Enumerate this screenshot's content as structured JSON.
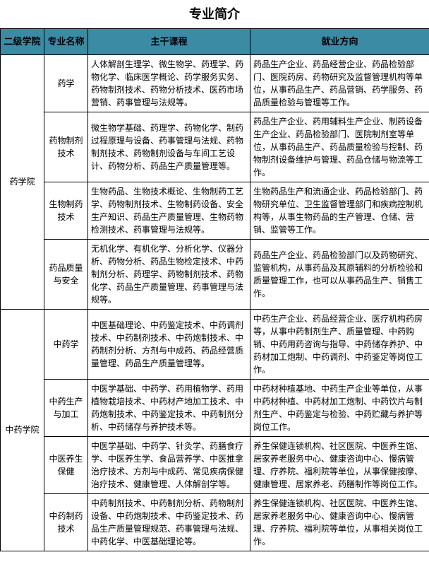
{
  "page_title": "专业简介",
  "header": {
    "college": "二级学院",
    "major": "专业名称",
    "courses": "主干课程",
    "career": "就业方向"
  },
  "colleges": [
    {
      "name": "药学院",
      "majors": [
        {
          "name": "药学",
          "courses": "人体解剖生理学、微生物学、药理学、药物化学、临床医学概论、药学服务实务、药物制剂技术、药物分析技术、医药市场营销、药事管理与法规等。",
          "career": "药品生产企业、药品经营企业、药品检验部门、医院药房、药物研究及监督管理机构等单位，从事药品生产、药品营销、药学服务、药品质量检验与管理等工作。"
        },
        {
          "name": "药物制剂技术",
          "courses": "微生物学基础、药理学、药物化学、制药过程原理与设备、药事管理与法规、药物制剂技术、药物制剂设备与车间工艺设计、药物分析、药品生产质量管理等。",
          "career": "药品生产企业、药用辅料生产企业、制药设备生产企业、药品检验部门、医院制剂室等单位，从事药品生产、药品质量检验与控制、药物制剂设备维护与管理、药品仓储与物流等工作。"
        },
        {
          "name": "生物制药技术",
          "courses": "生物药品、生物技术概论、生物制药工艺学、药物制剂技术、生物制药设备、安全生产知识、药品生产质量管理、生物药物检测技术、药事管理与法规等。",
          "career": "生物药品生产和流通企业、药品检验部门、药物研究单位、卫生监督管理部门和疾病控制机构等，从事生物药品的生产管理、仓储、营销、监管等工作。"
        },
        {
          "name": "药品质量与安全",
          "courses": "无机化学、有机化学、分析化学、仪器分析、药物分析、药品生物检定技术、中药制剂分析、药理学、药物制剂技术、药物化学、药品生产质量管理、药事管理与法规等。",
          "career": "药品生产企业、药品检验部门以及药物研究、监管机构，从事药品及其原辅料的分析检验和质量管理工作，也可以从事药品生产、销售工作。"
        }
      ]
    },
    {
      "name": "中药学院",
      "majors": [
        {
          "name": "中药学",
          "courses": "中医基础理论、中药鉴定技术、中药调剂技术、中药制剂技术、中药炮制技术、中药制剂分析、方剂与中成药、药品经营质量管理、药品生产质量管理等。",
          "career": "中药生产企业、药品经营企业、医疗机构药房等，从事中药制剂生产、质量管理、中药购销、中药用药咨询与指导、中药储存养护、中药材加工炮制、中药调剂、中药鉴定等岗位工作。"
        },
        {
          "name": "中药生产与加工",
          "courses": "中医学基础、中药学、药用植物学、药用植物栽培技术、中药材产地加工技术、中药炮制技术、中药鉴定技术、中药制剂分析、中药储存与养护技术等。",
          "career": "中药材种植基地、中药生产企业等单位，从事中药材种植、中药材加工炮制、中药饮片与制剂生产、中药鉴定与检验、中药贮藏与养护等岗位工作。"
        },
        {
          "name": "中医养生保健",
          "courses": "中医学基础、中药学、针灸学、药膳食疗学、中医养生学、食品营养学、中医推拿治疗技术、方剂与中成药、常见疾病保健治疗技术、健康管理、人体解剖学等。",
          "career": "养生保健连锁机构、社区医院、中医养生馆、居家养老服务中心、健康咨询中心、慢病管理、疗养院、福利院等单位，从事保健按摩、健康管理、居家养老、药膳制作等岗位工作。"
        },
        {
          "name": "中药制药技术",
          "courses": "中药制剂技术、中药制剂分析、药物制剂设备、中药炮制技术、中药鉴定技术、药品生产质量管理规范、药事管理与法规、中药化学、中医基础理论等。",
          "career": "养生保健连锁机构、社区医院、中医养生馆、居家养老服务中心、健康咨询中心、慢病管理、疗养院、福利院等单位，从事相关岗位工作。"
        }
      ]
    }
  ]
}
